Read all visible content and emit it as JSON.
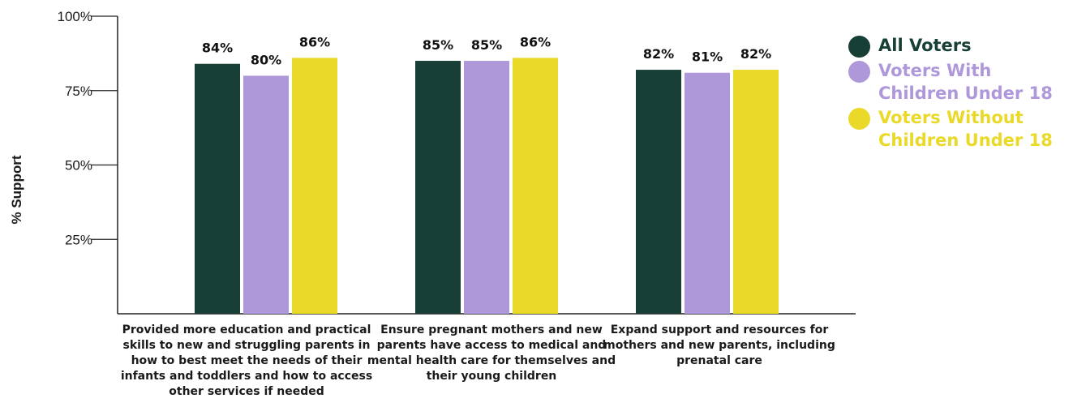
{
  "chart_data": {
    "type": "bar",
    "ylabel": "% Support",
    "ylim": [
      0,
      100
    ],
    "yticks": [
      "100%",
      "75%",
      "50%",
      "25%"
    ],
    "ytick_values": [
      100,
      75,
      50,
      25
    ],
    "categories": [
      "Provided more education and practical skills to new and struggling parents in how to best meet the needs of their infants and toddlers and how to access other services if needed",
      "Ensure pregnant mothers and new parents have access to medical and mental health care for themselves and their young children",
      "Expand support and resources for mothers and new parents, including prenatal care"
    ],
    "series": [
      {
        "name": "All Voters",
        "color": "#173f36",
        "values": [
          84,
          85,
          82
        ],
        "labels": [
          "84%",
          "85%",
          "82%"
        ]
      },
      {
        "name": "Voters With Children Under 18",
        "color": "#ae98da",
        "values": [
          80,
          85,
          81
        ],
        "labels": [
          "80%",
          "85%",
          "81%"
        ]
      },
      {
        "name": "Voters Without Children Under 18",
        "color": "#ead928",
        "values": [
          86,
          86,
          82
        ],
        "labels": [
          "86%",
          "86%",
          "82%"
        ]
      }
    ],
    "legend_position": "right",
    "grid": false
  }
}
